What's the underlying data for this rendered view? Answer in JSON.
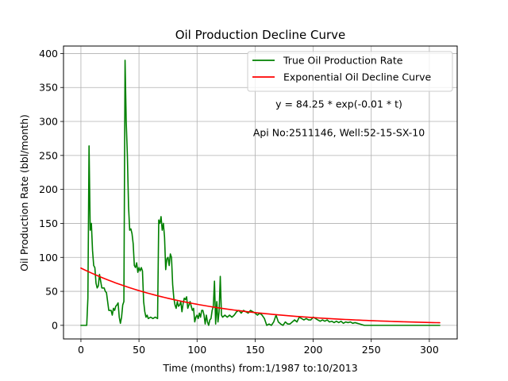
{
  "chart_data": {
    "type": "line",
    "title": "Oil Production Decline Curve",
    "xlabel": "Time (months) from:1/1987 to:10/2013",
    "ylabel": "Oil Production Rate (bbl/month)",
    "xlim": [
      -15,
      324
    ],
    "ylim": [
      -20,
      411
    ],
    "xticks": [
      0,
      50,
      100,
      150,
      200,
      250,
      300
    ],
    "yticks": [
      0,
      50,
      100,
      150,
      200,
      250,
      300,
      350,
      400
    ],
    "grid": true,
    "legend_position": "top-right",
    "annotations": [
      "y = 84.25 * exp(-0.01 * t)",
      "Api No:2511146, Well:52-15-SX-10"
    ],
    "series": [
      {
        "name": "True Oil Production Rate",
        "color": "#008000",
        "style": "line",
        "points": [
          [
            0,
            0
          ],
          [
            2,
            0
          ],
          [
            4,
            0
          ],
          [
            5,
            0
          ],
          [
            6,
            40
          ],
          [
            7,
            264
          ],
          [
            8,
            140
          ],
          [
            9,
            150
          ],
          [
            10,
            110
          ],
          [
            11,
            88
          ],
          [
            12,
            85
          ],
          [
            13,
            62
          ],
          [
            14,
            55
          ],
          [
            15,
            58
          ],
          [
            16,
            75
          ],
          [
            17,
            65
          ],
          [
            18,
            55
          ],
          [
            19,
            55
          ],
          [
            20,
            55
          ],
          [
            21,
            50
          ],
          [
            22,
            48
          ],
          [
            23,
            35
          ],
          [
            24,
            22
          ],
          [
            26,
            22
          ],
          [
            27,
            15
          ],
          [
            28,
            25
          ],
          [
            29,
            22
          ],
          [
            30,
            28
          ],
          [
            31,
            30
          ],
          [
            32,
            33
          ],
          [
            33,
            12
          ],
          [
            34,
            3
          ],
          [
            35,
            12
          ],
          [
            36,
            30
          ],
          [
            37,
            35
          ],
          [
            38,
            390
          ],
          [
            39,
            300
          ],
          [
            40,
            250
          ],
          [
            41,
            175
          ],
          [
            42,
            140
          ],
          [
            43,
            142
          ],
          [
            44,
            135
          ],
          [
            45,
            120
          ],
          [
            46,
            88
          ],
          [
            47,
            85
          ],
          [
            48,
            92
          ],
          [
            49,
            78
          ],
          [
            50,
            85
          ],
          [
            51,
            80
          ],
          [
            52,
            85
          ],
          [
            53,
            80
          ],
          [
            54,
            35
          ],
          [
            55,
            20
          ],
          [
            56,
            12
          ],
          [
            57,
            15
          ],
          [
            58,
            10
          ],
          [
            60,
            12
          ],
          [
            62,
            10
          ],
          [
            64,
            12
          ],
          [
            66,
            10
          ],
          [
            67,
            155
          ],
          [
            68,
            150
          ],
          [
            69,
            160
          ],
          [
            70,
            140
          ],
          [
            71,
            150
          ],
          [
            72,
            130
          ],
          [
            73,
            82
          ],
          [
            74,
            98
          ],
          [
            75,
            100
          ],
          [
            76,
            88
          ],
          [
            77,
            105
          ],
          [
            78,
            100
          ],
          [
            79,
            60
          ],
          [
            80,
            40
          ],
          [
            81,
            30
          ],
          [
            82,
            25
          ],
          [
            83,
            35
          ],
          [
            84,
            28
          ],
          [
            85,
            30
          ],
          [
            86,
            35
          ],
          [
            87,
            20
          ],
          [
            88,
            32
          ],
          [
            89,
            40
          ],
          [
            90,
            38
          ],
          [
            91,
            42
          ],
          [
            92,
            25
          ],
          [
            93,
            30
          ],
          [
            94,
            35
          ],
          [
            95,
            28
          ],
          [
            96,
            22
          ],
          [
            97,
            25
          ],
          [
            98,
            5
          ],
          [
            99,
            12
          ],
          [
            100,
            15
          ],
          [
            101,
            10
          ],
          [
            102,
            18
          ],
          [
            103,
            12
          ],
          [
            104,
            22
          ],
          [
            105,
            22
          ],
          [
            106,
            15
          ],
          [
            107,
            2
          ],
          [
            108,
            15
          ],
          [
            109,
            5
          ],
          [
            110,
            0
          ],
          [
            111,
            8
          ],
          [
            112,
            10
          ],
          [
            113,
            22
          ],
          [
            114,
            28
          ],
          [
            115,
            65
          ],
          [
            116,
            2
          ],
          [
            117,
            35
          ],
          [
            118,
            5
          ],
          [
            119,
            20
          ],
          [
            120,
            72
          ],
          [
            121,
            15
          ],
          [
            122,
            12
          ],
          [
            124,
            15
          ],
          [
            126,
            12
          ],
          [
            128,
            15
          ],
          [
            130,
            12
          ],
          [
            132,
            15
          ],
          [
            134,
            20
          ],
          [
            136,
            22
          ],
          [
            138,
            18
          ],
          [
            140,
            22
          ],
          [
            142,
            20
          ],
          [
            144,
            18
          ],
          [
            146,
            22
          ],
          [
            148,
            20
          ],
          [
            150,
            18
          ],
          [
            152,
            15
          ],
          [
            154,
            18
          ],
          [
            156,
            15
          ],
          [
            158,
            10
          ],
          [
            160,
            0
          ],
          [
            162,
            2
          ],
          [
            164,
            0
          ],
          [
            166,
            5
          ],
          [
            168,
            15
          ],
          [
            170,
            5
          ],
          [
            172,
            2
          ],
          [
            174,
            0
          ],
          [
            176,
            5
          ],
          [
            178,
            2
          ],
          [
            180,
            2
          ],
          [
            182,
            5
          ],
          [
            184,
            8
          ],
          [
            186,
            5
          ],
          [
            188,
            12
          ],
          [
            190,
            10
          ],
          [
            192,
            8
          ],
          [
            194,
            10
          ],
          [
            196,
            8
          ],
          [
            198,
            8
          ],
          [
            200,
            12
          ],
          [
            202,
            10
          ],
          [
            204,
            8
          ],
          [
            206,
            6
          ],
          [
            208,
            8
          ],
          [
            210,
            6
          ],
          [
            212,
            8
          ],
          [
            214,
            5
          ],
          [
            216,
            6
          ],
          [
            218,
            4
          ],
          [
            220,
            6
          ],
          [
            222,
            4
          ],
          [
            224,
            6
          ],
          [
            226,
            3
          ],
          [
            228,
            5
          ],
          [
            230,
            4
          ],
          [
            232,
            5
          ],
          [
            234,
            3
          ],
          [
            236,
            4
          ],
          [
            238,
            3
          ],
          [
            240,
            2
          ],
          [
            242,
            1
          ],
          [
            244,
            0
          ],
          [
            250,
            0
          ],
          [
            260,
            0
          ],
          [
            270,
            0
          ],
          [
            280,
            0
          ],
          [
            290,
            0
          ],
          [
            300,
            0
          ],
          [
            309,
            0
          ]
        ]
      },
      {
        "name": "Exponential Oil Decline Curve",
        "color": "#ff0000",
        "style": "line",
        "function": {
          "a": 84.25,
          "b": -0.01,
          "x_start": 0,
          "x_end": 309,
          "step": 3
        }
      }
    ]
  }
}
